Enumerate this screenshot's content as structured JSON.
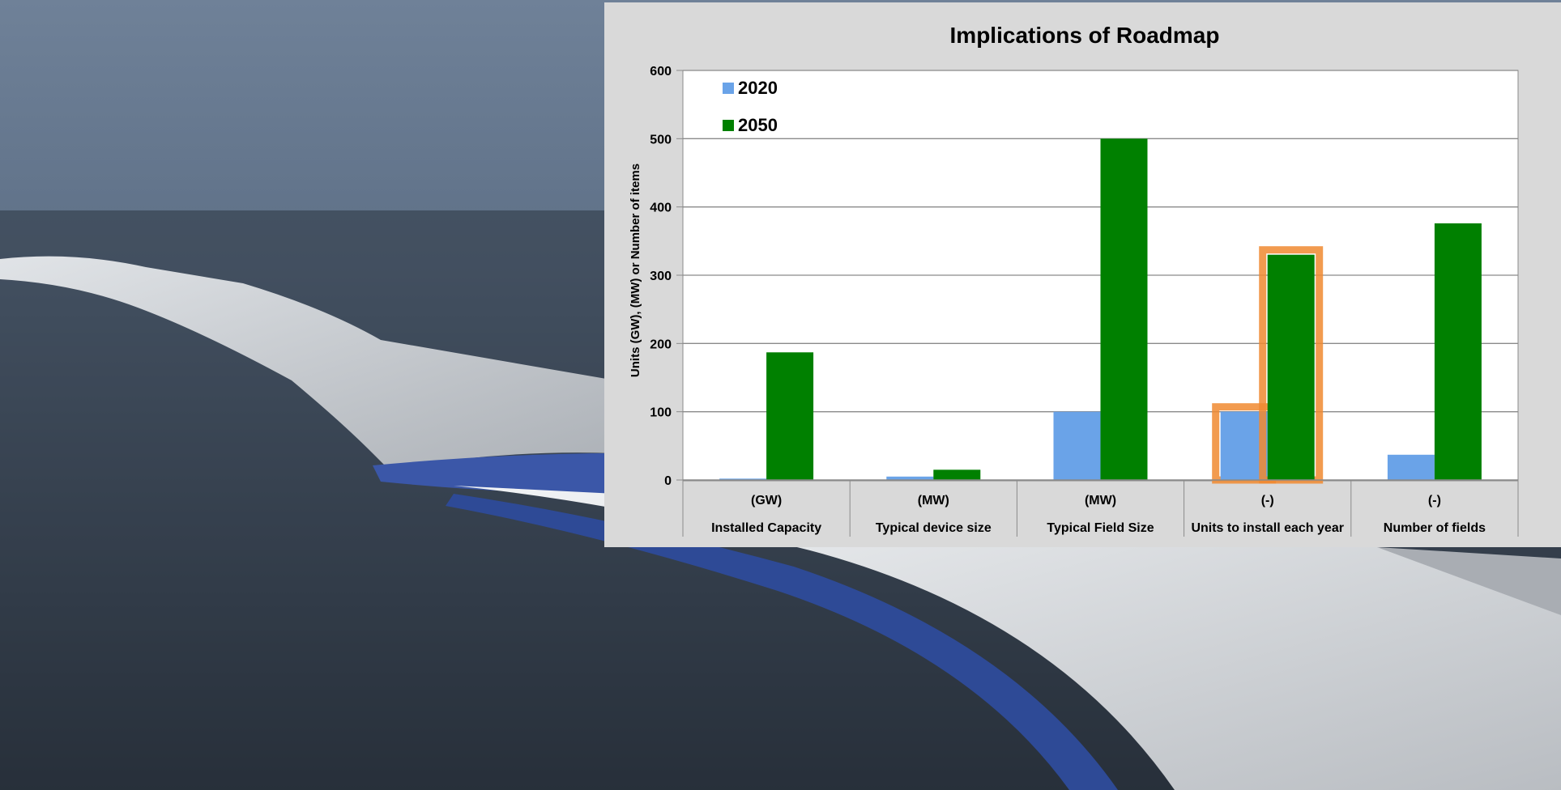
{
  "chart_data": {
    "type": "bar",
    "title": "Implications of Roadmap",
    "ylabel": "Units (GW), (MW) or Number of items",
    "xlabel": "",
    "ylim": [
      0,
      600
    ],
    "yticks": [
      0,
      100,
      200,
      300,
      400,
      500,
      600
    ],
    "grid": true,
    "legend_position": "top-left",
    "categories": [
      {
        "unit": "(GW)",
        "label": "Installed Capacity"
      },
      {
        "unit": "(MW)",
        "label": "Typical device size"
      },
      {
        "unit": "(MW)",
        "label": "Typical Field Size"
      },
      {
        "unit": "(-)",
        "label": "Units to install each year"
      },
      {
        "unit": "(-)",
        "label": "Number of  fields"
      }
    ],
    "series": [
      {
        "name": "2020",
        "color": "#6aa3e8",
        "values": [
          2,
          5,
          100,
          100,
          37
        ]
      },
      {
        "name": "2050",
        "color": "#008000",
        "values": [
          187,
          15,
          500,
          330,
          376
        ]
      }
    ],
    "highlight_category": 3,
    "highlight_color": "#f08a30"
  }
}
